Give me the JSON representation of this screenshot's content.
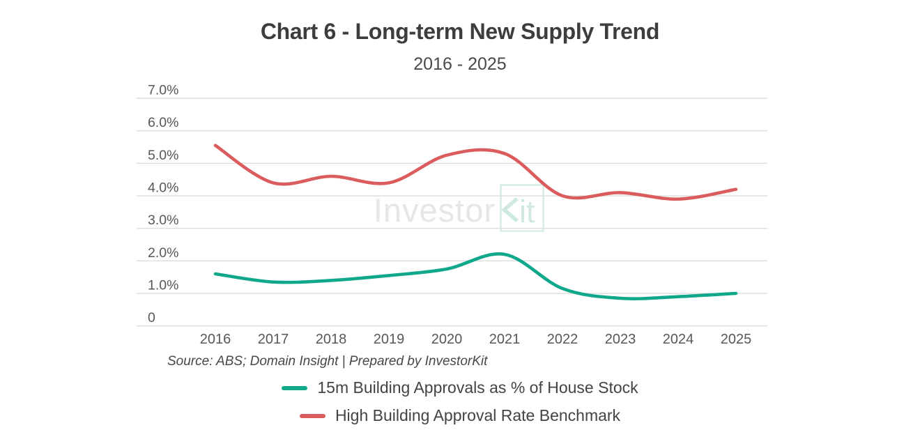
{
  "title": "Chart 6 - Long-term New Supply Trend",
  "subtitle": "2016 - 2025",
  "source_note": "Source: ABS; Domain Insight | Prepared by InvestorKit",
  "watermark": {
    "text_gray": "Investor",
    "text_mint": "Kit",
    "gray_color": "#e6e6e6",
    "mint_color": "#cfe9df",
    "box_color": "#d6ede5"
  },
  "colors": {
    "approvals_line": "#10a88a",
    "benchmark_line": "#db5c5c",
    "gridline": "#dcdcdc",
    "tick_label": "#575757"
  },
  "legend": [
    {
      "label": "15m Building Approvals as % of House Stock",
      "color": "#10a88a"
    },
    {
      "label": "High Building Approval Rate Benchmark",
      "color": "#db5c5c"
    }
  ],
  "chart_data": {
    "type": "line",
    "x": [
      2016,
      2017,
      2018,
      2019,
      2020,
      2021,
      2022,
      2023,
      2024,
      2025
    ],
    "series": [
      {
        "name": "15m Building Approvals as % of House Stock",
        "color": "#10a88a",
        "values": [
          1.6,
          1.35,
          1.4,
          1.55,
          1.75,
          2.2,
          1.15,
          0.85,
          0.9,
          1.0
        ]
      },
      {
        "name": "High Building Approval Rate Benchmark",
        "color": "#db5c5c",
        "values": [
          5.55,
          4.4,
          4.6,
          4.4,
          5.25,
          5.3,
          4.0,
          4.1,
          3.9,
          4.2
        ]
      }
    ],
    "title": "Chart 6 - Long-term New Supply Trend",
    "subtitle": "2016 - 2025",
    "xlabel": "",
    "ylabel": "",
    "ylim": [
      0,
      7
    ],
    "y_ticks": [
      "0",
      "1.0%",
      "2.0%",
      "3.0%",
      "4.0%",
      "5.0%",
      "6.0%",
      "7.0%"
    ],
    "grid": true,
    "legend_position": "bottom"
  }
}
